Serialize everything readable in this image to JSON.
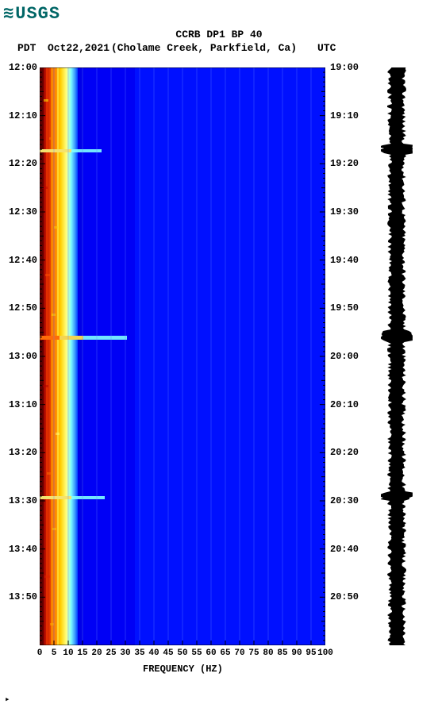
{
  "logo": {
    "text": "USGS"
  },
  "header": {
    "title": "CCRB DP1 BP 40",
    "tz_left": "PDT",
    "date": "Oct22,2021",
    "location": "(Cholame Creek, Parkfield, Ca)",
    "tz_right": "UTC"
  },
  "spectrogram": {
    "type": "spectrogram",
    "x_axis": {
      "label": "FREQUENCY (HZ)",
      "min": 0,
      "max": 100,
      "ticks": [
        0,
        5,
        10,
        15,
        20,
        25,
        30,
        35,
        40,
        45,
        50,
        55,
        60,
        65,
        70,
        75,
        80,
        85,
        90,
        95,
        100
      ]
    },
    "y_axis_left": {
      "label": "PDT",
      "ticks": [
        "12:00",
        "12:10",
        "12:20",
        "12:30",
        "12:40",
        "12:50",
        "13:00",
        "13:10",
        "13:20",
        "13:30",
        "13:40",
        "13:50"
      ]
    },
    "y_axis_right": {
      "label": "UTC",
      "ticks": [
        "19:00",
        "19:10",
        "19:20",
        "19:30",
        "19:40",
        "19:50",
        "20:00",
        "20:10",
        "20:20",
        "20:30",
        "20:40",
        "20:50"
      ]
    },
    "grid_color": "#6080ff",
    "colormap": [
      "#7f0000",
      "#d73027",
      "#fc8d59",
      "#fee090",
      "#e0f3f8",
      "#91bfdb",
      "#4575b4",
      "#0000b0",
      "#0000ff"
    ],
    "background_color": "#ffffff",
    "low_freq_band_hz": [
      0,
      12
    ],
    "events": [
      {
        "time_pdt": "12:15",
        "freq_extent_hz": 20
      },
      {
        "time_pdt": "12:47",
        "freq_extent_hz": 30
      },
      {
        "time_pdt": "13:21",
        "freq_extent_hz": 22
      }
    ]
  },
  "waveform": {
    "color": "#000000",
    "type": "time-series"
  },
  "fonts": {
    "family": "Courier New, monospace",
    "title_size": 13,
    "tick_size": 12
  }
}
